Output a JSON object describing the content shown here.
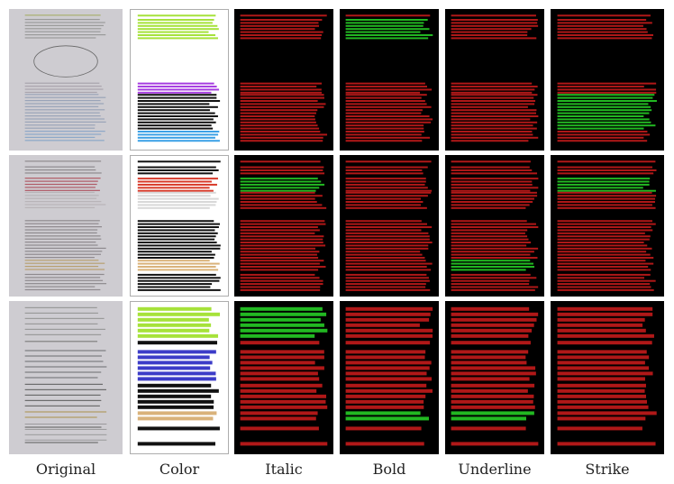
{
  "figure": {
    "columns": [
      {
        "key": "original",
        "caption": "Original"
      },
      {
        "key": "color",
        "caption": "Color"
      },
      {
        "key": "italic",
        "caption": "Italic"
      },
      {
        "key": "bold",
        "caption": "Bold"
      },
      {
        "key": "underline",
        "caption": "Underline"
      },
      {
        "key": "strike",
        "caption": "Strike"
      }
    ],
    "rows": [
      {
        "key": "english-page-1"
      },
      {
        "key": "english-page-2"
      },
      {
        "key": "chinese-page"
      }
    ],
    "colors": {
      "mask_background": "#000000",
      "mask_text": "#b01818",
      "mask_highlight": "#22b822",
      "color_green": "#a6e23a",
      "color_purple": "#a63ce0",
      "color_blue": "#3aa0e6",
      "color_red": "#d83a2a",
      "color_gray": "#d8d8d8",
      "color_tan": "#d9b27a",
      "color_navy": "#3c3cc8",
      "color_black": "#111111"
    }
  }
}
